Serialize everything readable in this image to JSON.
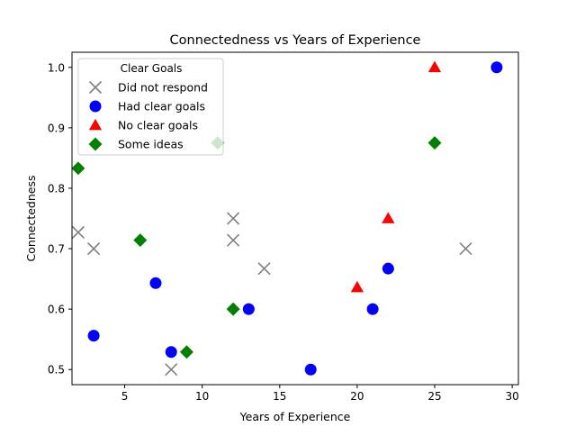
{
  "chart_data": {
    "type": "scatter",
    "title": "Connectedness vs Years of Experience",
    "xlabel": "Years of Experience",
    "ylabel": "Connectedness",
    "xlim": [
      1.6,
      30.4
    ],
    "ylim": [
      0.475,
      1.025
    ],
    "xticks": [
      5,
      10,
      15,
      20,
      25,
      30
    ],
    "yticks": [
      0.5,
      0.6,
      0.7,
      0.8,
      0.9,
      1.0
    ],
    "xtick_labels": [
      "5",
      "10",
      "15",
      "20",
      "25",
      "30"
    ],
    "ytick_labels": [
      "0.5",
      "0.6",
      "0.7",
      "0.8",
      "0.9",
      "1.0"
    ],
    "grid": false,
    "legend": {
      "title": "Clear Goals",
      "placement": "top-left"
    },
    "series": [
      {
        "name": "Did not respond",
        "marker": "x",
        "color": "#808080",
        "points": [
          {
            "x": 2,
            "y": 0.727
          },
          {
            "x": 3,
            "y": 0.7
          },
          {
            "x": 8,
            "y": 0.5
          },
          {
            "x": 12,
            "y": 0.75
          },
          {
            "x": 12,
            "y": 0.714
          },
          {
            "x": 14,
            "y": 0.667
          },
          {
            "x": 27,
            "y": 0.7
          }
        ]
      },
      {
        "name": "Had clear goals",
        "marker": "circle",
        "color": "#0000ff",
        "points": [
          {
            "x": 3,
            "y": 0.556
          },
          {
            "x": 7,
            "y": 0.643
          },
          {
            "x": 8,
            "y": 0.529
          },
          {
            "x": 13,
            "y": 0.6
          },
          {
            "x": 17,
            "y": 0.5
          },
          {
            "x": 21,
            "y": 0.6
          },
          {
            "x": 22,
            "y": 0.667
          },
          {
            "x": 29,
            "y": 1.0
          }
        ]
      },
      {
        "name": "No clear goals",
        "marker": "triangle",
        "color": "#ff0000",
        "points": [
          {
            "x": 20,
            "y": 0.636
          },
          {
            "x": 22,
            "y": 0.75
          },
          {
            "x": 25,
            "y": 1.0
          }
        ]
      },
      {
        "name": "Some ideas",
        "marker": "diamond",
        "color": "#008000",
        "points": [
          {
            "x": 2,
            "y": 0.833
          },
          {
            "x": 6,
            "y": 0.714
          },
          {
            "x": 9,
            "y": 0.529
          },
          {
            "x": 11,
            "y": 0.875
          },
          {
            "x": 12,
            "y": 0.6
          },
          {
            "x": 25,
            "y": 0.875
          }
        ]
      }
    ]
  }
}
